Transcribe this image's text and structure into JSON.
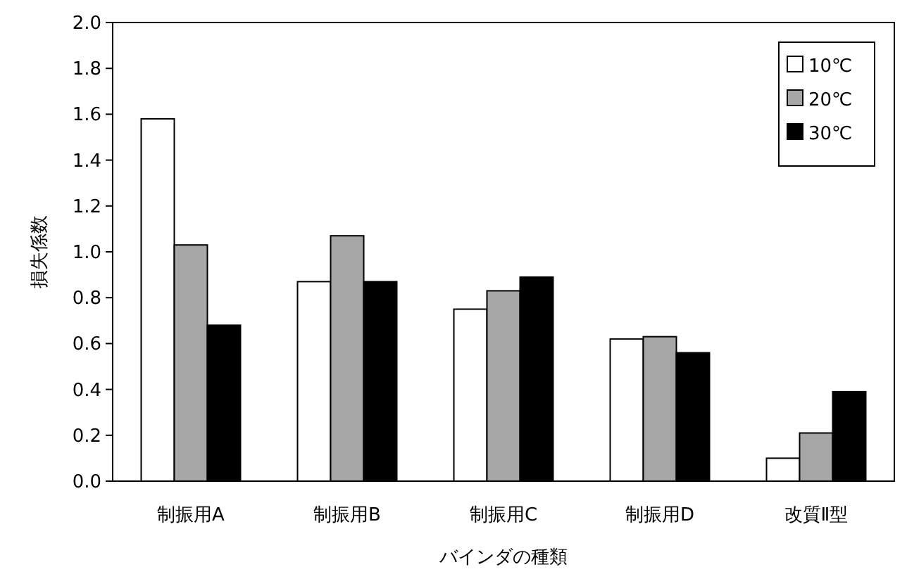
{
  "chart_data": {
    "type": "bar",
    "xlabel": "バインダの種類",
    "ylabel": "損失係数",
    "categories": [
      "制振用A",
      "制振用B",
      "制振用C",
      "制振用D",
      "改質Ⅱ型"
    ],
    "series": [
      {
        "name": "10℃",
        "color": "#ffffff",
        "values": [
          1.58,
          0.87,
          0.75,
          0.62,
          0.1
        ]
      },
      {
        "name": "20℃",
        "color": "#a6a6a6",
        "values": [
          1.03,
          1.07,
          0.83,
          0.63,
          0.21
        ]
      },
      {
        "name": "30℃",
        "color": "#000000",
        "values": [
          0.68,
          0.87,
          0.89,
          0.56,
          0.39
        ]
      }
    ],
    "ylim": [
      0,
      2
    ],
    "yticks": [
      {
        "value": 0,
        "label": "0.0"
      },
      {
        "value": 0.2,
        "label": "0.2"
      },
      {
        "value": 0.4,
        "label": "0.4"
      },
      {
        "value": 0.6,
        "label": "0.6"
      },
      {
        "value": 0.8,
        "label": "0.8"
      },
      {
        "value": 1.0,
        "label": "1.0"
      },
      {
        "value": 1.2,
        "label": "1.2"
      },
      {
        "value": 1.4,
        "label": "1.4"
      },
      {
        "value": 1.6,
        "label": "1.6"
      },
      {
        "value": 1.8,
        "label": "1.8"
      },
      {
        "value": 2.0,
        "label": "2.0"
      }
    ],
    "legend": "top right"
  }
}
